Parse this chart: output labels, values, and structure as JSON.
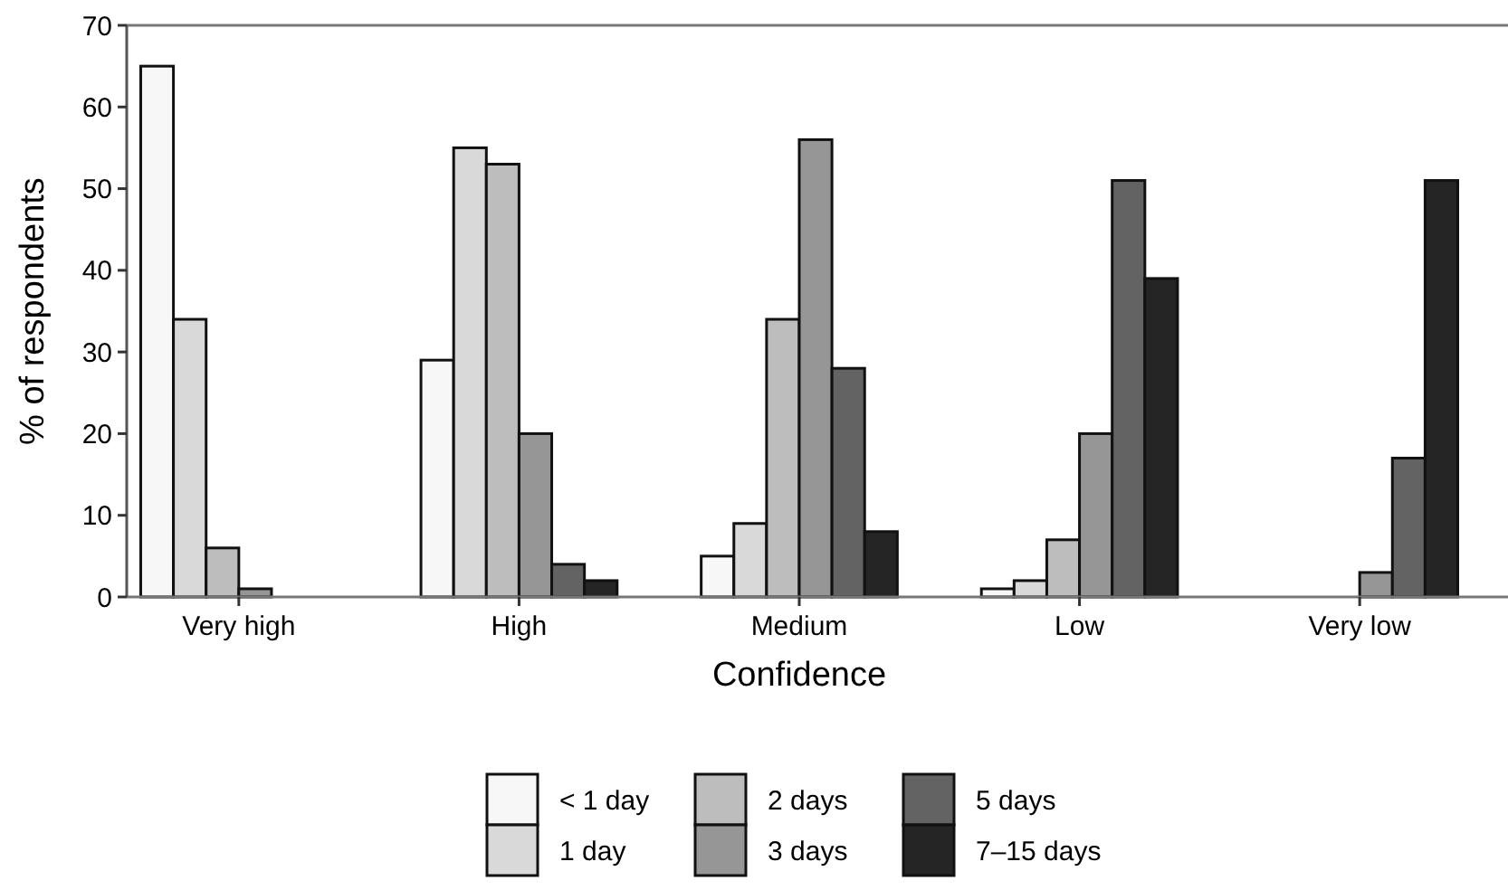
{
  "chart_data": {
    "type": "bar",
    "xlabel": "Confidence",
    "ylabel": "% of respondents",
    "categories": [
      "Very high",
      "High",
      "Medium",
      "Low",
      "Very low"
    ],
    "series": [
      {
        "name": "< 1 day",
        "color": "#f7f7f7",
        "values": [
          65,
          29,
          5,
          1,
          0
        ]
      },
      {
        "name": "1 day",
        "color": "#d9d9d9",
        "values": [
          34,
          55,
          9,
          2,
          0
        ]
      },
      {
        "name": "2 days",
        "color": "#bdbdbd",
        "values": [
          6,
          53,
          34,
          7,
          0
        ]
      },
      {
        "name": "3 days",
        "color": "#969696",
        "values": [
          1,
          20,
          56,
          20,
          3
        ]
      },
      {
        "name": "5 days",
        "color": "#636363",
        "values": [
          0,
          4,
          28,
          51,
          17
        ]
      },
      {
        "name": "7–15 days",
        "color": "#252525",
        "values": [
          0,
          2,
          8,
          39,
          51
        ]
      }
    ],
    "ylim": [
      0,
      70
    ],
    "yticks": [
      0,
      10,
      20,
      30,
      40,
      50,
      60,
      70
    ],
    "grid": false,
    "legend": "bottom"
  }
}
